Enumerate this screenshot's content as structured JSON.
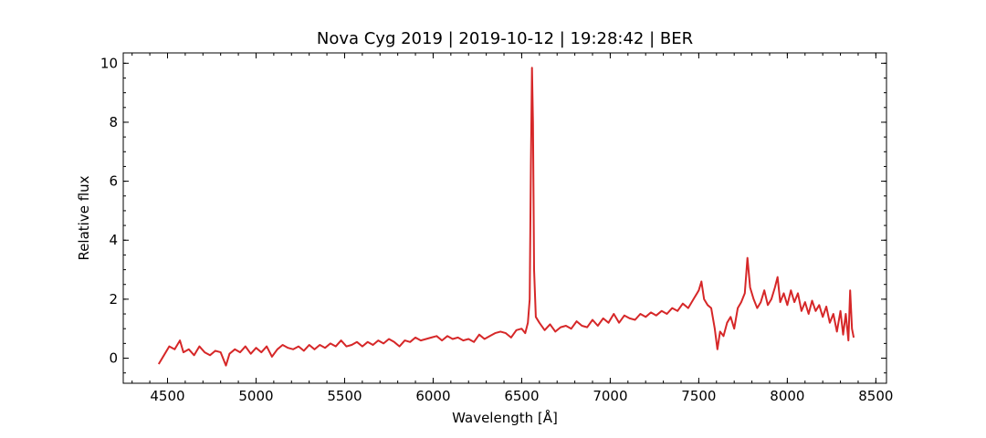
{
  "chart_data": {
    "type": "line",
    "title": "Nova Cyg 2019 | 2019-10-12 | 19:28:42 | BER",
    "xlabel": "Wavelength [Å]",
    "ylabel": "Relative flux",
    "xlim": [
      4250,
      8560
    ],
    "ylim": [
      -0.85,
      10.35
    ],
    "xticks": [
      4500,
      5000,
      5500,
      6000,
      6500,
      7000,
      7500,
      8000,
      8500
    ],
    "yticks": [
      0,
      2,
      4,
      6,
      8,
      10
    ],
    "x_minor_step": 100,
    "y_minor_step": 0.5,
    "tick_direction": "in",
    "grid": false,
    "legend": "none",
    "series": [
      {
        "color": "#d62728",
        "points": [
          [
            4450,
            -0.2
          ],
          [
            4480,
            0.1
          ],
          [
            4510,
            0.4
          ],
          [
            4540,
            0.3
          ],
          [
            4570,
            0.6
          ],
          [
            4590,
            0.2
          ],
          [
            4620,
            0.3
          ],
          [
            4650,
            0.1
          ],
          [
            4680,
            0.4
          ],
          [
            4710,
            0.2
          ],
          [
            4740,
            0.1
          ],
          [
            4770,
            0.25
          ],
          [
            4800,
            0.2
          ],
          [
            4830,
            -0.25
          ],
          [
            4850,
            0.15
          ],
          [
            4880,
            0.3
          ],
          [
            4910,
            0.2
          ],
          [
            4940,
            0.4
          ],
          [
            4970,
            0.15
          ],
          [
            5000,
            0.35
          ],
          [
            5030,
            0.2
          ],
          [
            5060,
            0.4
          ],
          [
            5090,
            0.05
          ],
          [
            5120,
            0.3
          ],
          [
            5150,
            0.45
          ],
          [
            5180,
            0.35
          ],
          [
            5210,
            0.3
          ],
          [
            5240,
            0.4
          ],
          [
            5270,
            0.25
          ],
          [
            5300,
            0.45
          ],
          [
            5330,
            0.3
          ],
          [
            5360,
            0.45
          ],
          [
            5390,
            0.35
          ],
          [
            5420,
            0.5
          ],
          [
            5450,
            0.4
          ],
          [
            5480,
            0.6
          ],
          [
            5510,
            0.4
          ],
          [
            5540,
            0.45
          ],
          [
            5570,
            0.55
          ],
          [
            5600,
            0.4
          ],
          [
            5630,
            0.55
          ],
          [
            5660,
            0.45
          ],
          [
            5690,
            0.6
          ],
          [
            5720,
            0.5
          ],
          [
            5750,
            0.65
          ],
          [
            5780,
            0.55
          ],
          [
            5810,
            0.4
          ],
          [
            5840,
            0.6
          ],
          [
            5870,
            0.55
          ],
          [
            5900,
            0.7
          ],
          [
            5930,
            0.6
          ],
          [
            5960,
            0.65
          ],
          [
            5990,
            0.7
          ],
          [
            6020,
            0.75
          ],
          [
            6050,
            0.6
          ],
          [
            6080,
            0.75
          ],
          [
            6110,
            0.65
          ],
          [
            6140,
            0.7
          ],
          [
            6170,
            0.6
          ],
          [
            6200,
            0.65
          ],
          [
            6230,
            0.55
          ],
          [
            6260,
            0.8
          ],
          [
            6290,
            0.65
          ],
          [
            6320,
            0.75
          ],
          [
            6350,
            0.85
          ],
          [
            6380,
            0.9
          ],
          [
            6410,
            0.85
          ],
          [
            6440,
            0.7
          ],
          [
            6470,
            0.95
          ],
          [
            6500,
            1.0
          ],
          [
            6520,
            0.85
          ],
          [
            6535,
            1.2
          ],
          [
            6545,
            2.0
          ],
          [
            6552,
            6.5
          ],
          [
            6558,
            9.85
          ],
          [
            6564,
            8.0
          ],
          [
            6570,
            3.0
          ],
          [
            6580,
            1.4
          ],
          [
            6600,
            1.2
          ],
          [
            6630,
            0.95
          ],
          [
            6660,
            1.15
          ],
          [
            6690,
            0.9
          ],
          [
            6720,
            1.05
          ],
          [
            6750,
            1.1
          ],
          [
            6780,
            1.0
          ],
          [
            6810,
            1.25
          ],
          [
            6840,
            1.1
          ],
          [
            6870,
            1.05
          ],
          [
            6900,
            1.3
          ],
          [
            6930,
            1.1
          ],
          [
            6960,
            1.35
          ],
          [
            6990,
            1.2
          ],
          [
            7020,
            1.5
          ],
          [
            7050,
            1.2
          ],
          [
            7080,
            1.45
          ],
          [
            7110,
            1.35
          ],
          [
            7140,
            1.3
          ],
          [
            7170,
            1.5
          ],
          [
            7200,
            1.4
          ],
          [
            7230,
            1.55
          ],
          [
            7260,
            1.45
          ],
          [
            7290,
            1.6
          ],
          [
            7320,
            1.5
          ],
          [
            7350,
            1.7
          ],
          [
            7380,
            1.6
          ],
          [
            7410,
            1.85
          ],
          [
            7440,
            1.7
          ],
          [
            7470,
            2.0
          ],
          [
            7500,
            2.3
          ],
          [
            7515,
            2.6
          ],
          [
            7530,
            2.0
          ],
          [
            7550,
            1.8
          ],
          [
            7570,
            1.7
          ],
          [
            7590,
            1.0
          ],
          [
            7605,
            0.3
          ],
          [
            7620,
            0.9
          ],
          [
            7640,
            0.75
          ],
          [
            7660,
            1.2
          ],
          [
            7680,
            1.4
          ],
          [
            7700,
            1.0
          ],
          [
            7720,
            1.7
          ],
          [
            7740,
            1.9
          ],
          [
            7760,
            2.2
          ],
          [
            7775,
            3.4
          ],
          [
            7790,
            2.4
          ],
          [
            7810,
            2.0
          ],
          [
            7830,
            1.7
          ],
          [
            7850,
            1.9
          ],
          [
            7870,
            2.3
          ],
          [
            7890,
            1.8
          ],
          [
            7910,
            2.0
          ],
          [
            7930,
            2.4
          ],
          [
            7945,
            2.75
          ],
          [
            7960,
            1.9
          ],
          [
            7980,
            2.2
          ],
          [
            8000,
            1.8
          ],
          [
            8020,
            2.3
          ],
          [
            8040,
            1.9
          ],
          [
            8060,
            2.2
          ],
          [
            8080,
            1.6
          ],
          [
            8100,
            1.9
          ],
          [
            8120,
            1.5
          ],
          [
            8140,
            1.95
          ],
          [
            8160,
            1.6
          ],
          [
            8180,
            1.8
          ],
          [
            8200,
            1.4
          ],
          [
            8220,
            1.75
          ],
          [
            8240,
            1.2
          ],
          [
            8260,
            1.5
          ],
          [
            8280,
            0.9
          ],
          [
            8300,
            1.6
          ],
          [
            8315,
            0.8
          ],
          [
            8330,
            1.5
          ],
          [
            8345,
            0.6
          ],
          [
            8355,
            2.3
          ],
          [
            8365,
            1.0
          ],
          [
            8375,
            0.7
          ]
        ]
      }
    ]
  }
}
